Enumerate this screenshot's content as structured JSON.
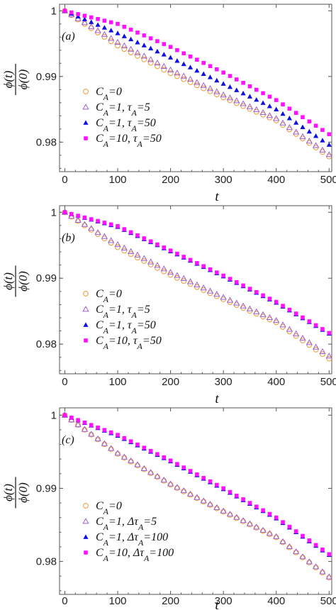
{
  "y_axis_label": {
    "numerator": "ϕ(t)",
    "denominator": "ϕ(0)"
  },
  "colors": {
    "C0": "#f0a040",
    "C1": "#a060d0",
    "C2": "#1010e0",
    "C3": "#ff10ff",
    "axis": "#555555"
  },
  "chart_data": [
    {
      "type": "scatter",
      "panel_label": "(a)",
      "xlabel": "t",
      "xlim": [
        -10,
        505
      ],
      "ylim": [
        0.9755,
        1.001
      ],
      "x_ticks": [
        "0",
        "100",
        "200",
        "300",
        "400",
        "500"
      ],
      "y_ticks": [
        "1",
        "0.99",
        "0.98"
      ],
      "legend": {
        "placement": "bottom-left"
      },
      "series": [
        {
          "name": "C_A=0",
          "marker": "open-circle",
          "x_start": 0,
          "x_step": 12.5,
          "x_end": 500,
          "y_at": {
            "0": 1.0,
            "100": 0.9947,
            "200": 0.9905,
            "300": 0.9868,
            "400": 0.9833,
            "500": 0.9778
          }
        },
        {
          "name": "C_A=1, τ_A=5",
          "marker": "open-triangle",
          "x_start": 0,
          "x_step": 12.5,
          "x_end": 500,
          "y_at": {
            "0": 1.0,
            "100": 0.9952,
            "200": 0.991,
            "300": 0.9872,
            "400": 0.9836,
            "500": 0.9781
          }
        },
        {
          "name": "C_A=1, τ_A=50",
          "marker": "filled-triangle",
          "x_start": 0,
          "x_step": 12.5,
          "x_end": 500,
          "y_at": {
            "0": 1.0,
            "100": 0.9966,
            "200": 0.9929,
            "300": 0.9889,
            "400": 0.985,
            "500": 0.9796
          }
        },
        {
          "name": "C_A=10, τ_A=50",
          "marker": "filled-square",
          "x_start": 0,
          "x_step": 12.5,
          "x_end": 500,
          "y_at": {
            "0": 1.0,
            "100": 0.998,
            "200": 0.9945,
            "300": 0.9906,
            "400": 0.9864,
            "500": 0.9812
          }
        }
      ]
    },
    {
      "type": "scatter",
      "panel_label": "(b)",
      "xlabel": "t",
      "xlim": [
        -10,
        505
      ],
      "ylim": [
        0.9755,
        1.001
      ],
      "x_ticks": [
        "0",
        "100",
        "200",
        "300",
        "400",
        "500"
      ],
      "y_ticks": [
        "1",
        "0.99",
        "0.98"
      ],
      "legend": {
        "placement": "bottom-left"
      },
      "series": [
        {
          "name": "C_A=0",
          "marker": "open-circle",
          "x_start": 0,
          "x_step": 12.5,
          "x_end": 500,
          "y_at": {
            "0": 1.0,
            "100": 0.9947,
            "200": 0.9905,
            "300": 0.9868,
            "400": 0.9833,
            "500": 0.9778
          }
        },
        {
          "name": "C_A=1, τ_A=5",
          "marker": "open-triangle",
          "x_start": 0,
          "x_step": 12.5,
          "x_end": 500,
          "y_at": {
            "0": 1.0,
            "100": 0.9951,
            "200": 0.9909,
            "300": 0.9871,
            "400": 0.9836,
            "500": 0.9782
          }
        },
        {
          "name": "C_A=1, τ_A=50",
          "marker": "filled-triangle",
          "x_start": 0,
          "x_step": 12.5,
          "x_end": 500,
          "y_at": {
            "0": 1.0,
            "100": 0.9978,
            "200": 0.9941,
            "300": 0.9903,
            "400": 0.9863,
            "500": 0.9816
          }
        },
        {
          "name": "C_A=10, τ_A=50",
          "marker": "filled-square",
          "x_start": 0,
          "x_step": 12.5,
          "x_end": 500,
          "y_at": {
            "0": 1.0,
            "100": 0.9979,
            "200": 0.9942,
            "300": 0.9904,
            "400": 0.9864,
            "500": 0.9817
          }
        }
      ]
    },
    {
      "type": "scatter",
      "panel_label": "(c)",
      "xlabel": "t",
      "xlim": [
        -10,
        505
      ],
      "ylim": [
        0.9755,
        1.001
      ],
      "x_ticks": [
        "0",
        "100",
        "200",
        "300",
        "400",
        "500"
      ],
      "y_ticks": [
        "1",
        "0.99",
        "0.98"
      ],
      "legend": {
        "placement": "bottom-left"
      },
      "series": [
        {
          "name": "C_A=0",
          "marker": "open-circle",
          "x_start": 0,
          "x_step": 12.5,
          "x_end": 500,
          "y_at": {
            "0": 1.0,
            "100": 0.9947,
            "200": 0.9905,
            "300": 0.9868,
            "400": 0.9833,
            "500": 0.9778
          }
        },
        {
          "name": "C_A=1, Δτ_A=5",
          "marker": "open-triangle",
          "x_start": 0,
          "x_step": 12.5,
          "x_end": 500,
          "y_at": {
            "0": 1.0,
            "100": 0.9948,
            "200": 0.9906,
            "300": 0.9869,
            "400": 0.9834,
            "500": 0.9779
          }
        },
        {
          "name": "C_A=1, Δτ_A=100",
          "marker": "filled-triangle",
          "x_start": 0,
          "x_step": 12.5,
          "x_end": 500,
          "y_at": {
            "0": 1.0,
            "100": 0.9972,
            "200": 0.9937,
            "300": 0.9899,
            "400": 0.9859,
            "500": 0.9809
          }
        },
        {
          "name": "C_A=10, Δτ_A=100",
          "marker": "filled-square",
          "x_start": 0,
          "x_step": 12.5,
          "x_end": 500,
          "y_at": {
            "0": 1.0,
            "100": 0.9973,
            "200": 0.9938,
            "300": 0.99,
            "400": 0.986,
            "500": 0.981
          }
        }
      ]
    }
  ]
}
